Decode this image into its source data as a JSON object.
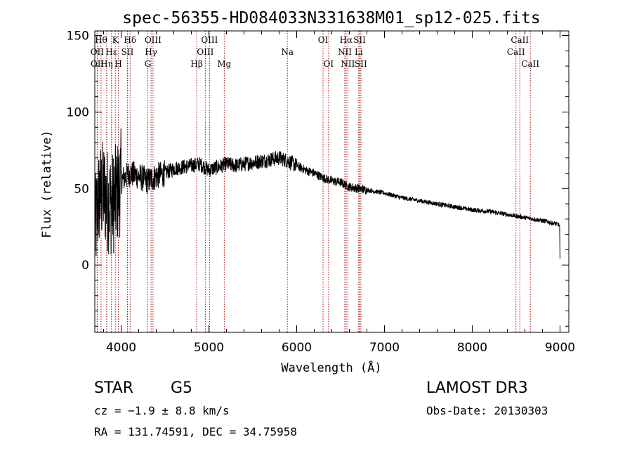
{
  "chart_data": {
    "type": "line",
    "title": "spec-56355-HD084033N331638M01_sp12-025.fits",
    "xlabel": "Wavelength (Å)",
    "ylabel": "Flux (relative)",
    "xlim": [
      3700,
      9100
    ],
    "ylim": [
      -44,
      153
    ],
    "xticks": [
      4000,
      5000,
      6000,
      7000,
      8000,
      9000
    ],
    "yticks": [
      0,
      50,
      100,
      150
    ],
    "spectrum_anchors": {
      "x": [
        3700,
        3750,
        3800,
        3850,
        3900,
        3950,
        4000,
        4100,
        4200,
        4300,
        4400,
        4500,
        4600,
        4700,
        4800,
        4900,
        5000,
        5100,
        5200,
        5300,
        5400,
        5500,
        5600,
        5700,
        5800,
        5900,
        6000,
        6100,
        6200,
        6300,
        6400,
        6500,
        6600,
        6700,
        6800,
        7000,
        7200,
        7400,
        7600,
        7800,
        8000,
        8200,
        8400,
        8600,
        8800,
        8950,
        9000
      ],
      "y": [
        22,
        45,
        48,
        42,
        40,
        46,
        55,
        60,
        58,
        55,
        58,
        60,
        63,
        64,
        65,
        66,
        62,
        64,
        66,
        65,
        66,
        67,
        68,
        69,
        70,
        68,
        65,
        62,
        60,
        57,
        55,
        54,
        51,
        50,
        49,
        47,
        44,
        42,
        40,
        38,
        36,
        35,
        33,
        31,
        29,
        27,
        26
      ],
      "noise_amplitude_blue": 35,
      "noise_amplitude_red": 1.5
    },
    "spectral_lines": [
      {
        "label": "OII",
        "wavelength": 3727,
        "row": 2
      },
      {
        "label": "OII",
        "wavelength": 3729,
        "row": 3
      },
      {
        "label": "Hθ",
        "wavelength": 3771,
        "row": 1
      },
      {
        "label": "Hη",
        "wavelength": 3835,
        "row": 3
      },
      {
        "label": "Hε",
        "wavelength": 3889,
        "row": 2
      },
      {
        "label": "K",
        "wavelength": 3934,
        "row": 1
      },
      {
        "label": "H",
        "wavelength": 3969,
        "row": 3
      },
      {
        "label": "Hδ",
        "wavelength": 4102,
        "row": 1
      },
      {
        "label": "SII",
        "wavelength": 4072,
        "row": 2
      },
      {
        "label": "OIII",
        "wavelength": 4363,
        "row": 1
      },
      {
        "label": "Hγ",
        "wavelength": 4341,
        "row": 2
      },
      {
        "label": "G",
        "wavelength": 4304,
        "row": 3
      },
      {
        "label": "Hβ",
        "wavelength": 4861,
        "row": 3
      },
      {
        "label": "OIII",
        "wavelength": 5007,
        "row": 1
      },
      {
        "label": "OIII",
        "wavelength": 4959,
        "row": 2
      },
      {
        "label": "Mg",
        "wavelength": 5175,
        "row": 3
      },
      {
        "label": "Na",
        "wavelength": 5894,
        "row": 2
      },
      {
        "label": "OI",
        "wavelength": 6300,
        "row": 1
      },
      {
        "label": "OI",
        "wavelength": 6363,
        "row": 3
      },
      {
        "label": "Hα",
        "wavelength": 6563,
        "row": 1
      },
      {
        "label": "NII",
        "wavelength": 6548,
        "row": 2
      },
      {
        "label": "NII",
        "wavelength": 6583,
        "row": 3
      },
      {
        "label": "SII",
        "wavelength": 6716,
        "row": 1
      },
      {
        "label": "Li",
        "wavelength": 6707,
        "row": 2
      },
      {
        "label": "SII",
        "wavelength": 6731,
        "row": 3
      },
      {
        "label": "CaII",
        "wavelength": 8542,
        "row": 1
      },
      {
        "label": "CaII",
        "wavelength": 8498,
        "row": 2
      },
      {
        "label": "CaII",
        "wavelength": 8662,
        "row": 3
      }
    ]
  },
  "info": {
    "object_type": "STAR",
    "subclass": "G5",
    "survey": "LAMOST DR3",
    "cz": "cz = −1.9 ± 8.8 km/s",
    "obs_date": "Obs-Date: 20130303",
    "coords": "RA = 131.74591, DEC =  34.75958"
  },
  "colors": {
    "line_marker": "#b01010",
    "spectrum": "#000000"
  }
}
